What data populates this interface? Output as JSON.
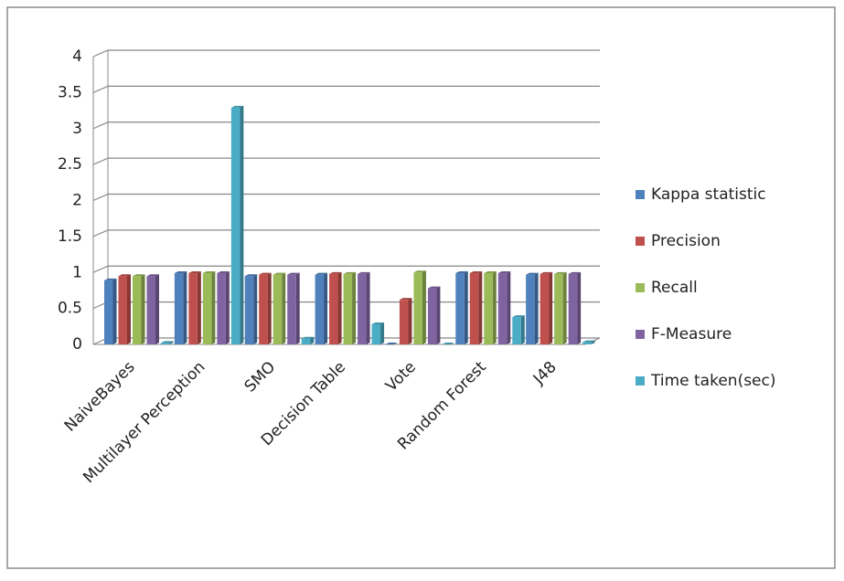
{
  "chart_data": {
    "type": "bar",
    "categories": [
      "NaiveBayes",
      "Multilayer Perception",
      "SMO",
      "Decision Table",
      "Vote",
      "Random Forest",
      "J48"
    ],
    "series": [
      {
        "name": "Kappa statistic",
        "color": "#4f81bd",
        "values": [
          0.89,
          0.99,
          0.95,
          0.97,
          0,
          0.99,
          0.97
        ]
      },
      {
        "name": "Precision",
        "color": "#c0504d",
        "values": [
          0.95,
          0.99,
          0.97,
          0.98,
          0.62,
          0.99,
          0.98
        ]
      },
      {
        "name": "Recall",
        "color": "#9bbb59",
        "values": [
          0.95,
          0.99,
          0.97,
          0.98,
          1.0,
          0.99,
          0.98
        ]
      },
      {
        "name": "F-Measure",
        "color": "#8064a2",
        "values": [
          0.95,
          0.99,
          0.97,
          0.98,
          0.78,
          0.99,
          0.98
        ]
      },
      {
        "name": "Time taken(sec)",
        "color": "#4bacc6",
        "values": [
          0.02,
          3.29,
          0.08,
          0.28,
          0,
          0.38,
          0.03
        ]
      }
    ],
    "ylim": [
      0,
      4
    ],
    "yticks": [
      0,
      0.5,
      1,
      1.5,
      2,
      2.5,
      3,
      3.5,
      4
    ],
    "grid": true,
    "legend": "right"
  }
}
